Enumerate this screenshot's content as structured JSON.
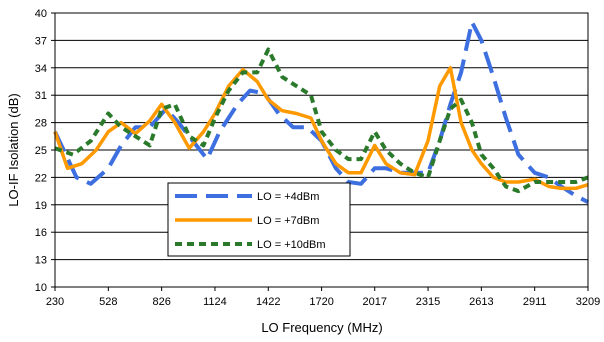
{
  "chart_data": {
    "type": "line",
    "title": "",
    "xlabel": "LO Frequency (MHz)",
    "ylabel": "LO-IF Isolation (dB)",
    "xlim": [
      230,
      3209
    ],
    "ylim": [
      10,
      40
    ],
    "xticks": [
      "230",
      "528",
      "826",
      "1124",
      "1422",
      "1720",
      "2017",
      "2315",
      "2613",
      "2911",
      "3209"
    ],
    "yticks": [
      "10",
      "13",
      "16",
      "19",
      "22",
      "25",
      "28",
      "31",
      "34",
      "37",
      "40"
    ],
    "grid": "horizontal",
    "legend_position": "bottom-center",
    "series": [
      {
        "name": "LO = +4dBm",
        "color": "#3d6fe0",
        "style": "dashed",
        "x": [
          230,
          350,
          430,
          528,
          600,
          680,
          760,
          850,
          920,
          1000,
          1080,
          1150,
          1250,
          1320,
          1400,
          1480,
          1560,
          1640,
          1720,
          1800,
          1870,
          1940,
          2017,
          2080,
          2160,
          2240,
          2315,
          2380,
          2440,
          2500,
          2560,
          2613,
          2680,
          2750,
          2820,
          2911,
          2990,
          3060,
          3140,
          3209
        ],
        "y": [
          27.0,
          22.0,
          21.3,
          23.0,
          25.5,
          27.5,
          27.5,
          29.5,
          28.0,
          26.0,
          24.0,
          27.0,
          30.0,
          31.5,
          31.2,
          29.0,
          27.5,
          27.5,
          26.0,
          23.0,
          21.5,
          21.3,
          23.0,
          23.0,
          22.5,
          22.5,
          22.5,
          26.0,
          30.0,
          33.5,
          39.0,
          37.0,
          33.0,
          28.5,
          24.5,
          22.5,
          22.0,
          21.0,
          20.0,
          19.3
        ]
      },
      {
        "name": "LO = +7dBm",
        "color": "#ff9900",
        "style": "solid",
        "x": [
          230,
          300,
          380,
          460,
          528,
          600,
          680,
          760,
          826,
          900,
          980,
          1060,
          1124,
          1200,
          1280,
          1360,
          1422,
          1500,
          1580,
          1660,
          1720,
          1800,
          1870,
          1940,
          2017,
          2080,
          2160,
          2240,
          2315,
          2380,
          2440,
          2500,
          2560,
          2613,
          2680,
          2750,
          2820,
          2911,
          2990,
          3060,
          3140,
          3209
        ],
        "y": [
          27.0,
          23.0,
          23.5,
          25.0,
          27.0,
          28.0,
          26.8,
          28.2,
          30.0,
          28.0,
          25.2,
          27.0,
          29.0,
          32.0,
          33.8,
          32.5,
          30.5,
          29.3,
          29.0,
          28.5,
          26.0,
          23.5,
          22.5,
          22.5,
          25.5,
          23.5,
          22.5,
          22.3,
          26.0,
          32.0,
          34.0,
          28.0,
          25.0,
          23.5,
          22.0,
          21.5,
          21.5,
          21.8,
          21.0,
          20.8,
          20.8,
          21.2
        ]
      },
      {
        "name": "LO = +10dBm",
        "color": "#2b7a2b",
        "style": "dotted",
        "x": [
          230,
          330,
          430,
          528,
          600,
          680,
          760,
          826,
          900,
          980,
          1060,
          1124,
          1200,
          1280,
          1360,
          1422,
          1500,
          1580,
          1660,
          1720,
          1800,
          1870,
          1940,
          2017,
          2080,
          2160,
          2240,
          2315,
          2380,
          2440,
          2500,
          2560,
          2613,
          2680,
          2750,
          2820,
          2911,
          2990,
          3060,
          3140,
          3209
        ],
        "y": [
          25.2,
          24.5,
          26.0,
          29.0,
          27.5,
          26.5,
          25.5,
          29.5,
          30.0,
          26.5,
          25.5,
          28.5,
          31.5,
          33.5,
          33.5,
          36.0,
          33.0,
          32.0,
          31.0,
          27.0,
          25.0,
          24.0,
          24.0,
          27.0,
          25.0,
          23.5,
          22.5,
          22.0,
          26.0,
          29.5,
          30.5,
          28.0,
          24.5,
          23.0,
          21.0,
          20.5,
          21.5,
          21.5,
          21.5,
          21.5,
          22.0
        ]
      }
    ]
  }
}
